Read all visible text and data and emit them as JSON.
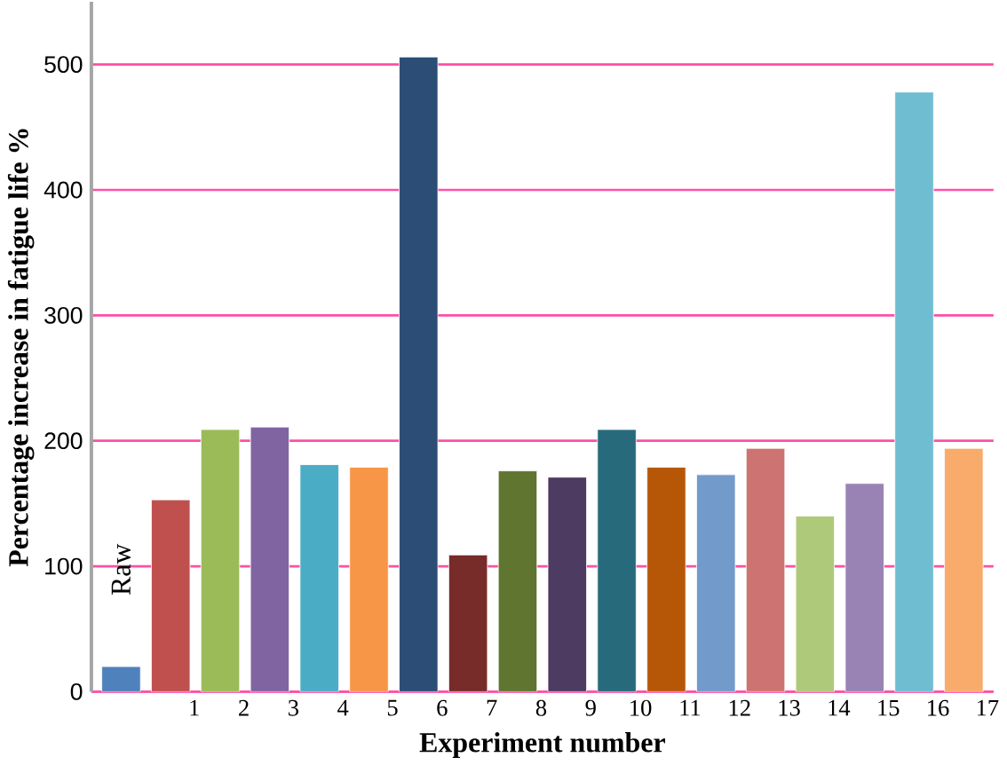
{
  "chart_data": {
    "type": "bar",
    "xlabel": "Experiment number",
    "ylabel": "Percentage increase in fatigue life %",
    "categories": [
      "Raw",
      "1",
      "2",
      "3",
      "4",
      "5",
      "6",
      "7",
      "8",
      "9",
      "10",
      "11",
      "12",
      "13",
      "14",
      "15",
      "16",
      "17"
    ],
    "values": [
      20,
      153,
      209,
      211,
      181,
      179,
      506,
      109,
      176,
      171,
      209,
      179,
      173,
      194,
      140,
      166,
      478,
      194
    ],
    "colors": [
      "#4f81bd",
      "#c0504d",
      "#9bbb59",
      "#8064a2",
      "#4bacc6",
      "#f79646",
      "#2c4d75",
      "#772c2a",
      "#5f7530",
      "#4d3b62",
      "#276a7c",
      "#b65708",
      "#729aca",
      "#cd7371",
      "#afc97a",
      "#9983b5",
      "#6fbdd1",
      "#f9ab6b"
    ],
    "ylim": [
      0,
      550
    ],
    "yticks": [
      0,
      100,
      200,
      300,
      400,
      500
    ],
    "grid": "y"
  }
}
